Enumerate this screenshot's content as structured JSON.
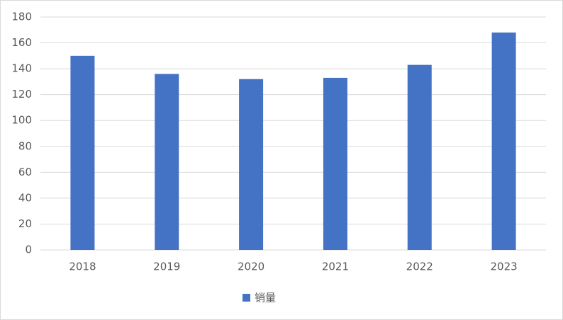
{
  "chart_data": {
    "type": "bar",
    "categories": [
      "2018",
      "2019",
      "2020",
      "2021",
      "2022",
      "2023"
    ],
    "series": [
      {
        "name": "销量",
        "color": "#4472c4",
        "values": [
          150,
          136,
          132,
          133,
          143,
          168
        ]
      }
    ],
    "ylim": [
      0,
      180
    ],
    "yticks": [
      0,
      20,
      40,
      60,
      80,
      100,
      120,
      140,
      160,
      180
    ],
    "grid": true,
    "legend": "bottom"
  }
}
